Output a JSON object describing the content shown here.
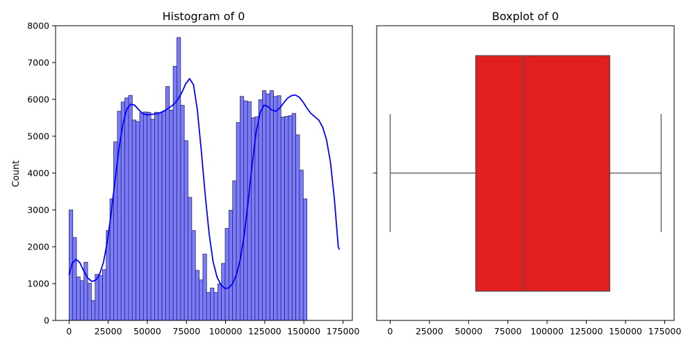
{
  "chart_data": [
    {
      "type": "bar",
      "title": "Histogram of 0",
      "xlabel": "",
      "ylabel": "Count",
      "xlim": [
        -8600,
        181000
      ],
      "ylim": [
        0,
        8000
      ],
      "xticks": [
        0,
        25000,
        50000,
        75000,
        100000,
        125000,
        150000,
        175000
      ],
      "yticks": [
        0,
        1000,
        2000,
        3000,
        4000,
        5000,
        6000,
        7000,
        8000
      ],
      "bin_width": 2375,
      "bin_start": 0,
      "bar_color": "#7b7bff",
      "kde_color": "#0000ff",
      "counts": [
        3000,
        2250,
        1180,
        1080,
        1580,
        1010,
        540,
        1250,
        1220,
        1380,
        2440,
        3300,
        4850,
        5680,
        5930,
        6040,
        6110,
        5440,
        5400,
        5640,
        5660,
        5650,
        5460,
        5650,
        5640,
        5680,
        6350,
        5710,
        6900,
        7680,
        5840,
        4880,
        3340,
        2440,
        1360,
        1100,
        1800,
        760,
        880,
        760,
        990,
        1550,
        2500,
        2990,
        3790,
        5370,
        6080,
        5960,
        5940,
        5500,
        5530,
        5990,
        6240,
        6150,
        6240,
        6080,
        6100,
        5520,
        5540,
        5560,
        5620,
        5040,
        4080,
        3300
      ],
      "kde": [
        [
          0,
          1230
        ],
        [
          2000,
          1550
        ],
        [
          4500,
          1660
        ],
        [
          7000,
          1560
        ],
        [
          9500,
          1330
        ],
        [
          12000,
          1150
        ],
        [
          14500,
          1060
        ],
        [
          17000,
          1090
        ],
        [
          19500,
          1250
        ],
        [
          22000,
          1580
        ],
        [
          24500,
          2150
        ],
        [
          27000,
          2950
        ],
        [
          29500,
          3850
        ],
        [
          32000,
          4700
        ],
        [
          34500,
          5350
        ],
        [
          37000,
          5750
        ],
        [
          39500,
          5870
        ],
        [
          42000,
          5840
        ],
        [
          44500,
          5720
        ],
        [
          47000,
          5620
        ],
        [
          49500,
          5580
        ],
        [
          52000,
          5590
        ],
        [
          54500,
          5600
        ],
        [
          57000,
          5620
        ],
        [
          59500,
          5660
        ],
        [
          62000,
          5720
        ],
        [
          64500,
          5790
        ],
        [
          67000,
          5870
        ],
        [
          69500,
          6000
        ],
        [
          72000,
          6180
        ],
        [
          74500,
          6420
        ],
        [
          77000,
          6560
        ],
        [
          79500,
          6400
        ],
        [
          82000,
          5700
        ],
        [
          84500,
          4600
        ],
        [
          87000,
          3400
        ],
        [
          89500,
          2350
        ],
        [
          92000,
          1600
        ],
        [
          94500,
          1180
        ],
        [
          97000,
          970
        ],
        [
          99500,
          870
        ],
        [
          102000,
          880
        ],
        [
          104500,
          1000
        ],
        [
          107000,
          1250
        ],
        [
          109500,
          1680
        ],
        [
          112000,
          2350
        ],
        [
          114500,
          3250
        ],
        [
          117000,
          4250
        ],
        [
          119500,
          5100
        ],
        [
          122000,
          5630
        ],
        [
          124500,
          5840
        ],
        [
          127000,
          5810
        ],
        [
          129500,
          5710
        ],
        [
          132000,
          5680
        ],
        [
          134500,
          5760
        ],
        [
          137000,
          5900
        ],
        [
          139500,
          6030
        ],
        [
          142000,
          6100
        ],
        [
          144500,
          6120
        ],
        [
          147000,
          6060
        ],
        [
          149500,
          5930
        ],
        [
          152000,
          5760
        ],
        [
          154500,
          5620
        ],
        [
          157000,
          5530
        ],
        [
          159500,
          5440
        ],
        [
          162000,
          5250
        ],
        [
          164500,
          4900
        ],
        [
          167000,
          4300
        ],
        [
          169500,
          3300
        ],
        [
          172000,
          2000
        ],
        [
          172700,
          1920
        ]
      ]
    },
    {
      "type": "box",
      "title": "Boxplot of 0",
      "xlim": [
        -8600,
        181000
      ],
      "xticks": [
        0,
        25000,
        50000,
        75000,
        100000,
        125000,
        150000,
        175000
      ],
      "min": 0,
      "q1": 54500,
      "median": 85000,
      "q3": 140000,
      "max": 172700,
      "box_color": "#e11f1f"
    }
  ]
}
